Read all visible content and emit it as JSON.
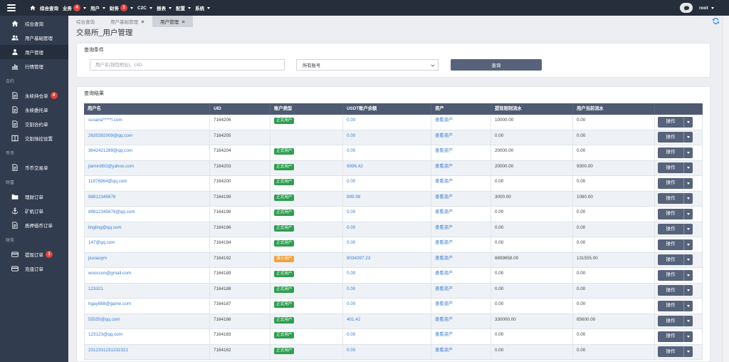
{
  "topbar": {
    "nav": [
      {
        "label": "综合查询",
        "icon": "home-icon"
      },
      {
        "label": "业务",
        "badge": "4",
        "dropdown": true
      },
      {
        "label": "用户",
        "dropdown": true
      },
      {
        "label": "财务",
        "badge": "1",
        "dropdown": true
      },
      {
        "label": "C2C",
        "dropdown": true
      },
      {
        "label": "报表",
        "dropdown": true
      },
      {
        "label": "配置",
        "dropdown": true
      },
      {
        "label": "系统",
        "dropdown": true
      }
    ],
    "user": "root"
  },
  "sidebar": {
    "groups": [
      {
        "title": "",
        "items": [
          {
            "label": "综合查询",
            "icon": "home-icon"
          },
          {
            "label": "用户基础管理",
            "icon": "users-icon"
          },
          {
            "label": "用户管理",
            "icon": "user-icon",
            "active": true
          },
          {
            "label": "行情管理",
            "icon": "bar-chart-icon"
          }
        ]
      },
      {
        "title": "合约",
        "items": [
          {
            "label": "永续持仓单",
            "icon": "file-icon",
            "badge": "4"
          },
          {
            "label": "永续委托单",
            "icon": "file-icon"
          },
          {
            "label": "交割合约单",
            "icon": "file-icon"
          },
          {
            "label": "交割场控设置",
            "icon": "columns-icon"
          }
        ]
      },
      {
        "title": "币币",
        "items": [
          {
            "label": "币币交易单",
            "icon": "file-icon"
          }
        ]
      },
      {
        "title": "财富",
        "items": [
          {
            "label": "理财订单",
            "icon": "folder-icon"
          },
          {
            "label": "矿机订单",
            "icon": "anchor-icon"
          },
          {
            "label": "质押借币订单",
            "icon": "file-icon"
          }
        ]
      },
      {
        "title": "财务",
        "items": [
          {
            "label": "提现订单",
            "icon": "credit-card-icon",
            "badge": "1"
          },
          {
            "label": "充值订单",
            "icon": "credit-card-icon"
          }
        ]
      }
    ]
  },
  "tabs": [
    {
      "label": "综合查询",
      "closable": false
    },
    {
      "label": "用户基础管理",
      "closable": true
    },
    {
      "label": "用户管理",
      "closable": true,
      "active": true
    }
  ],
  "page_title": "交易所_用户管理",
  "query": {
    "title": "查询条件",
    "search_placeholder": "用户名(钱包地址)、UID",
    "account_select": "所有账号",
    "search_button": "查询"
  },
  "results": {
    "title": "查询结果",
    "columns": [
      "用户名",
      "UID",
      "账户类型",
      "USDT账户余额",
      "资产",
      "提现限制流水",
      "用户当前流水"
    ],
    "view_assets_label": "查看资产",
    "action_label": "操作",
    "account_type_colors": {
      "正式用户": "#2f9e4f",
      "演示用户": "#f0a23b"
    },
    "rows": [
      {
        "username": "susana*****l.com",
        "uid": "7164206",
        "account_type": "正式用户",
        "usdt_balance": "0.00",
        "withdraw_limit_flow": "10000.00",
        "current_flow": "0.00"
      },
      {
        "username": "2635392009@qq.com",
        "uid": "7164205",
        "account_type": "",
        "usdt_balance": "0.00",
        "withdraw_limit_flow": "0.00",
        "current_flow": "0.00"
      },
      {
        "username": "3642421289@qq.com",
        "uid": "7164204",
        "account_type": "正式用户",
        "usdt_balance": "0.00",
        "withdraw_limit_flow": "20000.00",
        "current_flow": "0.00"
      },
      {
        "username": "jiamin892@yahoo.com",
        "uid": "7164203",
        "account_type": "正式用户",
        "usdt_balance": "9996.42",
        "withdraw_limit_flow": "20000.00",
        "current_flow": "9300.00"
      },
      {
        "username": "11976964@qq.com",
        "uid": "7164200",
        "account_type": "正式用户",
        "usdt_balance": "0.00",
        "withdraw_limit_flow": "0.00",
        "current_flow": "0.00"
      },
      {
        "username": "88812345678",
        "uid": "7164199",
        "account_type": "正式用户",
        "usdt_balance": "899.99",
        "withdraw_limit_flow": "3000.00",
        "current_flow": "1080.00"
      },
      {
        "username": "88812345678@qq.com",
        "uid": "7164198",
        "account_type": "正式用户",
        "usdt_balance": "0.00",
        "withdraw_limit_flow": "0.00",
        "current_flow": "0.00"
      },
      {
        "username": "lingling@qq.com",
        "uid": "7164196",
        "account_type": "正式用户",
        "usdt_balance": "0.00",
        "withdraw_limit_flow": "0.00",
        "current_flow": "0.00"
      },
      {
        "username": "147@qq.com",
        "uid": "7164194",
        "account_type": "正式用户",
        "usdt_balance": "0.00",
        "withdraw_limit_flow": "0.00",
        "current_flow": "0.00"
      },
      {
        "username": "jiuxiaoym",
        "uid": "7164192",
        "account_type": "演示用户",
        "usdt_balance": "8034397.23",
        "withdraw_limit_flow": "8899858.00",
        "current_flow": "131555.00"
      },
      {
        "username": "wooccon@gmail.com",
        "uid": "7164189",
        "account_type": "正式用户",
        "usdt_balance": "0.00",
        "withdraw_limit_flow": "0.00",
        "current_flow": "0.00"
      },
      {
        "username": "123321",
        "uid": "7164188",
        "account_type": "正式用户",
        "usdt_balance": "0.00",
        "withdraw_limit_flow": "0.00",
        "current_flow": "0.00"
      },
      {
        "username": "hgay888@game.com",
        "uid": "7164187",
        "account_type": "正式用户",
        "usdt_balance": "0.00",
        "withdraw_limit_flow": "0.00",
        "current_flow": "0.00"
      },
      {
        "username": "55555@qq.com",
        "uid": "7164186",
        "account_type": "正式用户",
        "usdt_balance": "401.42",
        "withdraw_limit_flow": "330000.00",
        "current_flow": "85600.00"
      },
      {
        "username": "123123@qq.com",
        "uid": "7164183",
        "account_type": "正式用户",
        "usdt_balance": "0.00",
        "withdraw_limit_flow": "0.00",
        "current_flow": "0.00"
      },
      {
        "username": "2312331231232321",
        "uid": "7164182",
        "account_type": "正式用户",
        "usdt_balance": "0.00",
        "withdraw_limit_flow": "0.00",
        "current_flow": "0.00"
      }
    ]
  },
  "colors": {
    "topbar": "#262e3b",
    "sidebar": "#313c4f",
    "sidebar_active": "#252e3c",
    "table_header": "#4d5a72",
    "button": "#56637a",
    "link": "#3a7fd0",
    "count_badge": "#e5413a",
    "refresh_icon": "#2f8ff0"
  }
}
